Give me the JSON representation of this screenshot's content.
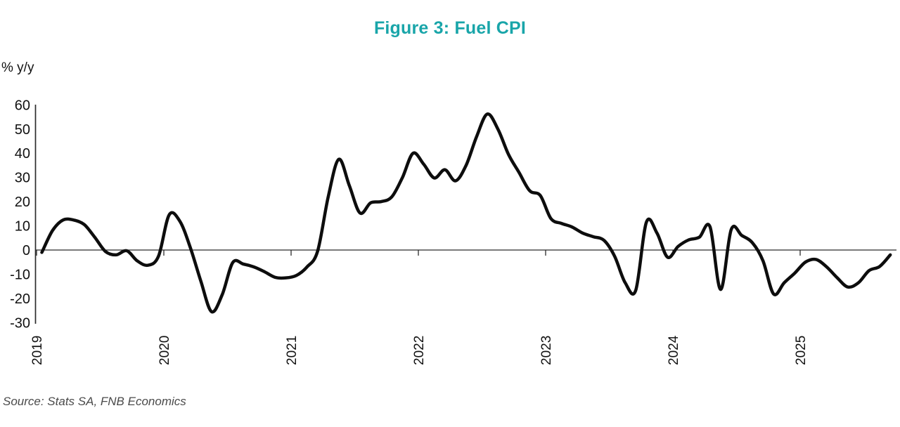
{
  "chart": {
    "title": "Figure 3: Fuel CPI",
    "y_axis_label": "% y/y",
    "source": "Source: Stats SA, FNB Economics"
  },
  "chart_data": {
    "type": "line",
    "title": "Figure 3: Fuel CPI",
    "ylabel": "% y/y",
    "xlabel": "",
    "grid": false,
    "legend": "none",
    "ylim": [
      -30,
      60
    ],
    "y_ticks": [
      60,
      50,
      40,
      30,
      20,
      10,
      0,
      -10,
      -20,
      -30
    ],
    "x_ticks": [
      "2019",
      "2020",
      "2021",
      "2022",
      "2023",
      "2024",
      "2025"
    ],
    "series_name": "Fuel CPI, % y/y",
    "x": [
      "2019-01",
      "2019-02",
      "2019-03",
      "2019-04",
      "2019-05",
      "2019-06",
      "2019-07",
      "2019-08",
      "2019-09",
      "2019-10",
      "2019-11",
      "2019-12",
      "2020-01",
      "2020-02",
      "2020-03",
      "2020-04",
      "2020-05",
      "2020-06",
      "2020-07",
      "2020-08",
      "2020-09",
      "2020-10",
      "2020-11",
      "2020-12",
      "2021-01",
      "2021-02",
      "2021-03",
      "2021-04",
      "2021-05",
      "2021-06",
      "2021-07",
      "2021-08",
      "2021-09",
      "2021-10",
      "2021-11",
      "2021-12",
      "2022-01",
      "2022-02",
      "2022-03",
      "2022-04",
      "2022-05",
      "2022-06",
      "2022-07",
      "2022-08",
      "2022-09",
      "2022-10",
      "2022-11",
      "2022-12",
      "2023-01",
      "2023-02",
      "2023-03",
      "2023-04",
      "2023-05",
      "2023-06",
      "2023-07",
      "2023-08",
      "2023-09",
      "2023-10",
      "2023-11",
      "2023-12",
      "2024-01",
      "2024-02",
      "2024-03",
      "2024-04",
      "2024-05",
      "2024-06",
      "2024-07",
      "2024-08",
      "2024-09",
      "2024-10",
      "2024-11",
      "2024-12",
      "2025-01",
      "2025-02",
      "2025-03",
      "2025-04",
      "2025-05",
      "2025-06",
      "2025-07",
      "2025-08",
      "2025-09"
    ],
    "values": [
      -1,
      8,
      12.4,
      12.4,
      10.5,
      5.2,
      -0.6,
      -2,
      -0.3,
      -4.5,
      -6.3,
      -2.5,
      14.5,
      12,
      1,
      -13,
      -25.5,
      -18.5,
      -5.2,
      -5.8,
      -7,
      -9,
      -11.3,
      -11.5,
      -10.5,
      -7,
      -0.5,
      22,
      37.5,
      26.5,
      15.3,
      19.5,
      20,
      22,
      30,
      40,
      35.5,
      29.8,
      33.2,
      28.6,
      35,
      47,
      56.2,
      50,
      39.5,
      32,
      24.5,
      22.5,
      13,
      11,
      9.5,
      7,
      5.5,
      4,
      -2.5,
      -13.5,
      -16.6,
      11.5,
      7,
      -3,
      1.5,
      4.2,
      5.3,
      9.6,
      -16.3,
      8.5,
      6,
      3,
      -4.5,
      -18.2,
      -13.5,
      -9.5,
      -5,
      -3.9,
      -7,
      -11.5,
      -15.3,
      -13.5,
      -8.5,
      -6.8,
      -2
    ],
    "colors": {
      "line": "#0d0d0d",
      "title": "#19a5a9",
      "axis": "#2b2b2b",
      "tick_label": "#111111"
    }
  }
}
